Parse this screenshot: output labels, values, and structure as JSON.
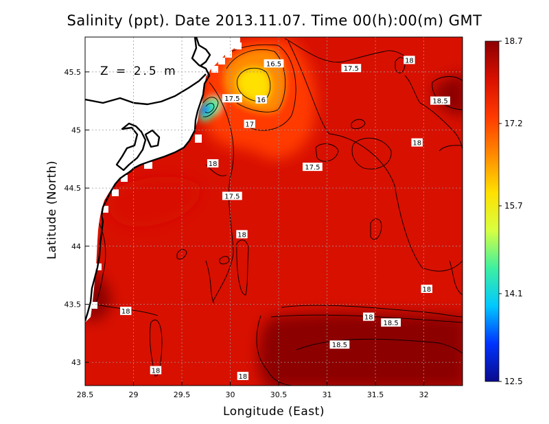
{
  "title": "Salinity (ppt). Date 2013.11.07. Time 00(h):00(m) GMT",
  "depth_label": "Z = 2.5 m",
  "chart_data": {
    "type": "heatmap",
    "title": "Salinity (ppt). Date 2013.11.07. Time 00(h):00(m) GMT",
    "xlabel": "Longitude (East)",
    "ylabel": "Latitude (North)",
    "xlim": [
      28.5,
      32.4
    ],
    "ylim": [
      42.8,
      45.8
    ],
    "x_ticks": [
      28.5,
      29,
      29.5,
      30,
      30.5,
      31,
      31.5,
      32
    ],
    "x_tick_labels": [
      "28.5",
      "29",
      "29.5",
      "30",
      "30.5",
      "31",
      "31.5",
      "32"
    ],
    "y_ticks": [
      43,
      43.5,
      44,
      44.5,
      45,
      45.5
    ],
    "y_tick_labels": [
      "43",
      "43.5",
      "44",
      "44.5",
      "45",
      "45.5"
    ],
    "grid": true,
    "colorbar": {
      "min": 12.5,
      "max": 18.7,
      "ticks": [
        18.7,
        17.2,
        15.7,
        14.1,
        12.5
      ],
      "tick_labels": [
        "18.7",
        "17.2",
        "15.7",
        "14.1",
        "12.5"
      ],
      "colors": [
        "#0a0a8c",
        "#0033ff",
        "#00c8ff",
        "#3ef0a0",
        "#d8ff40",
        "#ffe000",
        "#ff8a00",
        "#ff3a00",
        "#d81000",
        "#8c0000"
      ]
    },
    "contour_labels": [
      {
        "value": "16.5",
        "lon": 30.45,
        "lat": 45.57
      },
      {
        "value": "17.5",
        "lon": 31.25,
        "lat": 45.53
      },
      {
        "value": "18",
        "lon": 31.85,
        "lat": 45.6
      },
      {
        "value": "16",
        "lon": 30.32,
        "lat": 45.26
      },
      {
        "value": "17.5",
        "lon": 30.02,
        "lat": 45.27
      },
      {
        "value": "18.5",
        "lon": 32.17,
        "lat": 45.25
      },
      {
        "value": "17",
        "lon": 30.2,
        "lat": 45.05
      },
      {
        "value": "18",
        "lon": 31.93,
        "lat": 44.89
      },
      {
        "value": "18",
        "lon": 29.82,
        "lat": 44.71
      },
      {
        "value": "17.5",
        "lon": 30.85,
        "lat": 44.68
      },
      {
        "value": "17.5",
        "lon": 30.02,
        "lat": 44.43
      },
      {
        "value": "18",
        "lon": 30.12,
        "lat": 44.1
      },
      {
        "value": "18",
        "lon": 32.03,
        "lat": 43.63
      },
      {
        "value": "18",
        "lon": 28.92,
        "lat": 43.44
      },
      {
        "value": "18",
        "lon": 31.43,
        "lat": 43.39
      },
      {
        "value": "18.5",
        "lon": 31.66,
        "lat": 43.34
      },
      {
        "value": "18.5",
        "lon": 31.13,
        "lat": 43.15
      },
      {
        "value": "18",
        "lon": 29.23,
        "lat": 42.93
      },
      {
        "value": "18",
        "lon": 30.13,
        "lat": 42.88
      }
    ],
    "fields": [
      {
        "name": "background",
        "value": 18.1
      },
      {
        "name": "southern-high-band",
        "value": 18.6
      },
      {
        "name": "northeast-high-patch",
        "value": 18.55
      },
      {
        "name": "bulgarian-coast-high",
        "value": 18.6
      },
      {
        "name": "western-shelf-high",
        "value": 18.3
      },
      {
        "name": "plume-17.5",
        "value": 17.4
      },
      {
        "name": "plume-17",
        "value": 17.0
      },
      {
        "name": "plume-16.5",
        "value": 16.5
      },
      {
        "name": "plume-16",
        "value": 16.0
      },
      {
        "name": "danube-mouth-low",
        "value": 14.5
      },
      {
        "name": "danube-mouth-core",
        "value": 13.0
      }
    ]
  }
}
